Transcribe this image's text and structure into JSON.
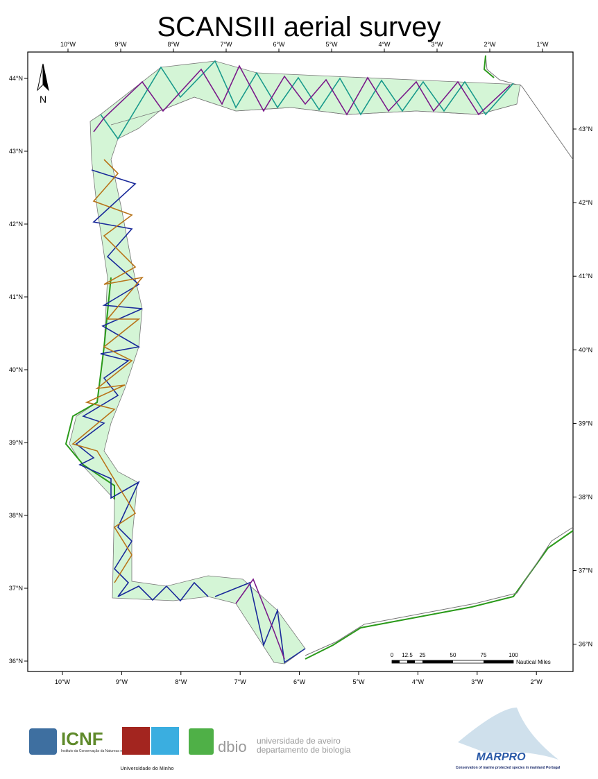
{
  "title": "SCANSIII aerial survey",
  "north_label": "N",
  "top_lon_labels": [
    "10°W",
    "9°W",
    "8°W",
    "7°W",
    "6°W",
    "5°W",
    "4°W",
    "3°W",
    "2°W",
    "1°W"
  ],
  "bottom_lon_labels": [
    "10°W",
    "9°W",
    "8°W",
    "7°W",
    "6°W",
    "5°W",
    "4°W",
    "3°W",
    "2°W"
  ],
  "left_lat_labels": [
    "44°N",
    "43°N",
    "42°N",
    "41°N",
    "40°N",
    "39°N",
    "38°N",
    "37°N",
    "36°N"
  ],
  "right_lat_labels": [
    "43°N",
    "42°N",
    "41°N",
    "40°N",
    "39°N",
    "38°N",
    "37°N",
    "36°N"
  ],
  "scale_bar": {
    "labels": [
      "0",
      "12.5",
      "25",
      "50",
      "75",
      "100"
    ],
    "unit": "Nautical Miles"
  },
  "logos": {
    "icnf": "ICNF",
    "icnf_sub": "Instituto da Conservação da Natureza e das Florestas",
    "uminho": "Universidade do Minho",
    "dbio": "dbio",
    "aveiro_1": "universidade de aveiro",
    "aveiro_2": "departamento de biologia",
    "marpro": "MARPRO",
    "marpro_sub": "Conservation of marine protected species in mainland Portugal"
  }
}
